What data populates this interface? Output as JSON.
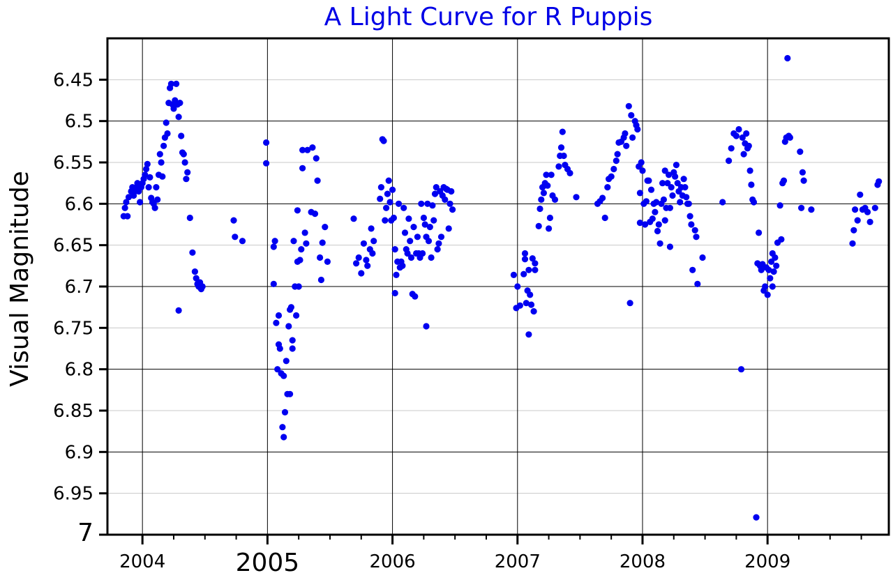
{
  "chart_data": {
    "type": "scatter",
    "title": "A Light Curve for R Puppis",
    "xlabel": "",
    "ylabel": "Visual Magnitude",
    "xlim": [
      2003.72,
      2009.97
    ],
    "ylim": [
      7.0,
      6.4
    ],
    "y_inverted": true,
    "grid": true,
    "color": "#0000f0",
    "x_ticks": [
      {
        "value": 2004,
        "label": "2004"
      },
      {
        "value": 2005,
        "label": "2005"
      },
      {
        "value": 2006,
        "label": "2006"
      },
      {
        "value": 2007,
        "label": "2007"
      },
      {
        "value": 2008,
        "label": "2008"
      },
      {
        "value": 2009,
        "label": "2009"
      }
    ],
    "y_ticks": [
      {
        "value": 6.45,
        "label": "6.45"
      },
      {
        "value": 6.5,
        "label": "6.5"
      },
      {
        "value": 6.55,
        "label": "6.55"
      },
      {
        "value": 6.6,
        "label": "6.6"
      },
      {
        "value": 6.65,
        "label": "6.65"
      },
      {
        "value": 6.7,
        "label": "6.7"
      },
      {
        "value": 6.75,
        "label": "6.75"
      },
      {
        "value": 6.8,
        "label": "6.8"
      },
      {
        "value": 6.85,
        "label": "6.85"
      },
      {
        "value": 6.9,
        "label": "6.9"
      },
      {
        "value": 6.95,
        "label": "6.95"
      },
      {
        "value": 7.0,
        "label": "7"
      }
    ],
    "points": [
      [
        2003.85,
        6.615
      ],
      [
        2003.86,
        6.605
      ],
      [
        2003.87,
        6.598
      ],
      [
        2003.88,
        6.615
      ],
      [
        2003.89,
        6.592
      ],
      [
        2003.91,
        6.585
      ],
      [
        2003.92,
        6.58
      ],
      [
        2003.93,
        6.59
      ],
      [
        2003.94,
        6.585
      ],
      [
        2003.95,
        6.58
      ],
      [
        2003.96,
        6.575
      ],
      [
        2003.97,
        6.585
      ],
      [
        2003.98,
        6.598
      ],
      [
        2003.99,
        6.58
      ],
      [
        2004.0,
        6.575
      ],
      [
        2004.01,
        6.57
      ],
      [
        2004.02,
        6.565
      ],
      [
        2004.03,
        6.558
      ],
      [
        2004.04,
        6.552
      ],
      [
        2004.05,
        6.58
      ],
      [
        2004.06,
        6.568
      ],
      [
        2004.07,
        6.593
      ],
      [
        2004.08,
        6.598
      ],
      [
        2004.09,
        6.6
      ],
      [
        2004.1,
        6.605
      ],
      [
        2004.11,
        6.58
      ],
      [
        2004.12,
        6.595
      ],
      [
        2004.13,
        6.565
      ],
      [
        2004.14,
        6.54
      ],
      [
        2004.15,
        6.55
      ],
      [
        2004.16,
        6.567
      ],
      [
        2004.17,
        6.53
      ],
      [
        2004.18,
        6.52
      ],
      [
        2004.19,
        6.502
      ],
      [
        2004.2,
        6.515
      ],
      [
        2004.21,
        6.478
      ],
      [
        2004.22,
        6.46
      ],
      [
        2004.23,
        6.455
      ],
      [
        2004.24,
        6.48
      ],
      [
        2004.25,
        6.485
      ],
      [
        2004.26,
        6.475
      ],
      [
        2004.27,
        6.455
      ],
      [
        2004.28,
        6.48
      ],
      [
        2004.29,
        6.495
      ],
      [
        2004.3,
        6.478
      ],
      [
        2004.31,
        6.518
      ],
      [
        2004.32,
        6.538
      ],
      [
        2004.33,
        6.54
      ],
      [
        2004.34,
        6.55
      ],
      [
        2004.35,
        6.57
      ],
      [
        2004.36,
        6.562
      ],
      [
        2004.38,
        6.617
      ],
      [
        2004.29,
        6.729
      ],
      [
        2004.4,
        6.659
      ],
      [
        2004.42,
        6.682
      ],
      [
        2004.43,
        6.69
      ],
      [
        2004.44,
        6.697
      ],
      [
        2004.45,
        6.7
      ],
      [
        2004.46,
        6.695
      ],
      [
        2004.47,
        6.703
      ],
      [
        2004.48,
        6.7
      ],
      [
        2004.73,
        6.62
      ],
      [
        2004.74,
        6.64
      ],
      [
        2004.8,
        6.645
      ],
      [
        2004.99,
        6.526
      ],
      [
        2004.99,
        6.551
      ],
      [
        2005.05,
        6.652
      ],
      [
        2005.06,
        6.645
      ],
      [
        2005.05,
        6.697
      ],
      [
        2005.07,
        6.744
      ],
      [
        2005.08,
        6.8
      ],
      [
        2005.09,
        6.77
      ],
      [
        2005.09,
        6.735
      ],
      [
        2005.1,
        6.775
      ],
      [
        2005.11,
        6.805
      ],
      [
        2005.12,
        6.87
      ],
      [
        2005.13,
        6.882
      ],
      [
        2005.13,
        6.808
      ],
      [
        2005.14,
        6.852
      ],
      [
        2005.15,
        6.79
      ],
      [
        2005.16,
        6.83
      ],
      [
        2005.17,
        6.748
      ],
      [
        2005.18,
        6.83
      ],
      [
        2005.18,
        6.728
      ],
      [
        2005.19,
        6.725
      ],
      [
        2005.2,
        6.765
      ],
      [
        2005.2,
        6.775
      ],
      [
        2005.21,
        6.645
      ],
      [
        2005.22,
        6.7
      ],
      [
        2005.23,
        6.735
      ],
      [
        2005.24,
        6.67
      ],
      [
        2005.24,
        6.608
      ],
      [
        2005.25,
        6.7
      ],
      [
        2005.26,
        6.668
      ],
      [
        2005.27,
        6.655
      ],
      [
        2005.28,
        6.535
      ],
      [
        2005.28,
        6.557
      ],
      [
        2005.3,
        6.635
      ],
      [
        2005.31,
        6.648
      ],
      [
        2005.32,
        6.535
      ],
      [
        2005.35,
        6.61
      ],
      [
        2005.36,
        6.532
      ],
      [
        2005.38,
        6.612
      ],
      [
        2005.39,
        6.545
      ],
      [
        2005.4,
        6.572
      ],
      [
        2005.42,
        6.665
      ],
      [
        2005.43,
        6.692
      ],
      [
        2005.44,
        6.647
      ],
      [
        2005.46,
        6.628
      ],
      [
        2005.48,
        6.67
      ],
      [
        2005.69,
        6.618
      ],
      [
        2005.71,
        6.672
      ],
      [
        2005.73,
        6.665
      ],
      [
        2005.75,
        6.684
      ],
      [
        2005.77,
        6.648
      ],
      [
        2005.79,
        6.668
      ],
      [
        2005.8,
        6.675
      ],
      [
        2005.82,
        6.655
      ],
      [
        2005.83,
        6.63
      ],
      [
        2005.84,
        6.66
      ],
      [
        2005.85,
        6.645
      ],
      [
        2005.9,
        6.594
      ],
      [
        2005.91,
        6.58
      ],
      [
        2005.92,
        6.522
      ],
      [
        2005.93,
        6.524
      ],
      [
        2005.94,
        6.62
      ],
      [
        2005.95,
        6.605
      ],
      [
        2005.96,
        6.588
      ],
      [
        2005.97,
        6.572
      ],
      [
        2005.98,
        6.598
      ],
      [
        2005.99,
        6.62
      ],
      [
        2006.0,
        6.583
      ],
      [
        2006.01,
        6.617
      ],
      [
        2006.02,
        6.655
      ],
      [
        2006.02,
        6.708
      ],
      [
        2006.03,
        6.686
      ],
      [
        2006.04,
        6.67
      ],
      [
        2006.05,
        6.6
      ],
      [
        2006.06,
        6.677
      ],
      [
        2006.07,
        6.67
      ],
      [
        2006.08,
        6.675
      ],
      [
        2006.09,
        6.605
      ],
      [
        2006.1,
        6.635
      ],
      [
        2006.11,
        6.655
      ],
      [
        2006.12,
        6.66
      ],
      [
        2006.13,
        6.618
      ],
      [
        2006.14,
        6.645
      ],
      [
        2006.15,
        6.665
      ],
      [
        2006.16,
        6.709
      ],
      [
        2006.17,
        6.628
      ],
      [
        2006.18,
        6.712
      ],
      [
        2006.19,
        6.66
      ],
      [
        2006.2,
        6.64
      ],
      [
        2006.21,
        6.66
      ],
      [
        2006.22,
        6.665
      ],
      [
        2006.23,
        6.6
      ],
      [
        2006.24,
        6.66
      ],
      [
        2006.25,
        6.617
      ],
      [
        2006.26,
        6.625
      ],
      [
        2006.27,
        6.64
      ],
      [
        2006.27,
        6.748
      ],
      [
        2006.28,
        6.6
      ],
      [
        2006.29,
        6.645
      ],
      [
        2006.3,
        6.628
      ],
      [
        2006.31,
        6.665
      ],
      [
        2006.32,
        6.602
      ],
      [
        2006.33,
        6.62
      ],
      [
        2006.34,
        6.588
      ],
      [
        2006.35,
        6.58
      ],
      [
        2006.36,
        6.655
      ],
      [
        2006.37,
        6.648
      ],
      [
        2006.38,
        6.585
      ],
      [
        2006.39,
        6.64
      ],
      [
        2006.4,
        6.59
      ],
      [
        2006.41,
        6.58
      ],
      [
        2006.42,
        6.595
      ],
      [
        2006.43,
        6.582
      ],
      [
        2006.44,
        6.583
      ],
      [
        2006.45,
        6.63
      ],
      [
        2006.46,
        6.6
      ],
      [
        2006.47,
        6.585
      ],
      [
        2006.48,
        6.607
      ],
      [
        2006.97,
        6.686
      ],
      [
        2006.99,
        6.726
      ],
      [
        2007.0,
        6.7
      ],
      [
        2007.02,
        6.723
      ],
      [
        2007.05,
        6.685
      ],
      [
        2007.06,
        6.667
      ],
      [
        2007.06,
        6.66
      ],
      [
        2007.07,
        6.72
      ],
      [
        2007.08,
        6.705
      ],
      [
        2007.09,
        6.758
      ],
      [
        2007.09,
        6.68
      ],
      [
        2007.1,
        6.71
      ],
      [
        2007.11,
        6.722
      ],
      [
        2007.12,
        6.666
      ],
      [
        2007.13,
        6.73
      ],
      [
        2007.14,
        6.68
      ],
      [
        2007.14,
        6.672
      ],
      [
        2007.17,
        6.627
      ],
      [
        2007.18,
        6.606
      ],
      [
        2007.19,
        6.595
      ],
      [
        2007.2,
        6.58
      ],
      [
        2007.21,
        6.587
      ],
      [
        2007.22,
        6.575
      ],
      [
        2007.23,
        6.565
      ],
      [
        2007.24,
        6.578
      ],
      [
        2007.25,
        6.63
      ],
      [
        2007.26,
        6.617
      ],
      [
        2007.27,
        6.565
      ],
      [
        2007.28,
        6.59
      ],
      [
        2007.3,
        6.595
      ],
      [
        2007.33,
        6.555
      ],
      [
        2007.34,
        6.542
      ],
      [
        2007.35,
        6.532
      ],
      [
        2007.36,
        6.513
      ],
      [
        2007.37,
        6.542
      ],
      [
        2007.38,
        6.553
      ],
      [
        2007.4,
        6.558
      ],
      [
        2007.42,
        6.563
      ],
      [
        2007.47,
        6.592
      ],
      [
        2007.64,
        6.6
      ],
      [
        2007.66,
        6.597
      ],
      [
        2007.68,
        6.593
      ],
      [
        2007.7,
        6.617
      ],
      [
        2007.72,
        6.58
      ],
      [
        2007.73,
        6.57
      ],
      [
        2007.75,
        6.567
      ],
      [
        2007.77,
        6.558
      ],
      [
        2007.79,
        6.548
      ],
      [
        2007.8,
        6.54
      ],
      [
        2007.81,
        6.526
      ],
      [
        2007.83,
        6.525
      ],
      [
        2007.85,
        6.52
      ],
      [
        2007.86,
        6.515
      ],
      [
        2007.87,
        6.53
      ],
      [
        2007.89,
        6.482
      ],
      [
        2007.9,
        6.72
      ],
      [
        2007.91,
        6.493
      ],
      [
        2007.92,
        6.52
      ],
      [
        2007.94,
        6.5
      ],
      [
        2007.95,
        6.505
      ],
      [
        2007.96,
        6.51
      ],
      [
        2007.97,
        6.555
      ],
      [
        2007.98,
        6.623
      ],
      [
        2007.98,
        6.587
      ],
      [
        2007.99,
        6.55
      ],
      [
        2008.0,
        6.56
      ],
      [
        2008.01,
        6.6
      ],
      [
        2008.02,
        6.625
      ],
      [
        2008.03,
        6.597
      ],
      [
        2008.04,
        6.572
      ],
      [
        2008.05,
        6.572
      ],
      [
        2008.06,
        6.622
      ],
      [
        2008.07,
        6.583
      ],
      [
        2008.08,
        6.618
      ],
      [
        2008.09,
        6.6
      ],
      [
        2008.1,
        6.61
      ],
      [
        2008.11,
        6.598
      ],
      [
        2008.12,
        6.633
      ],
      [
        2008.13,
        6.625
      ],
      [
        2008.14,
        6.648
      ],
      [
        2008.15,
        6.6
      ],
      [
        2008.16,
        6.575
      ],
      [
        2008.17,
        6.595
      ],
      [
        2008.18,
        6.62
      ],
      [
        2008.18,
        6.56
      ],
      [
        2008.19,
        6.605
      ],
      [
        2008.2,
        6.575
      ],
      [
        2008.21,
        6.565
      ],
      [
        2008.22,
        6.652
      ],
      [
        2008.22,
        6.605
      ],
      [
        2008.23,
        6.58
      ],
      [
        2008.24,
        6.59
      ],
      [
        2008.25,
        6.562
      ],
      [
        2008.26,
        6.567
      ],
      [
        2008.27,
        6.553
      ],
      [
        2008.28,
        6.575
      ],
      [
        2008.29,
        6.585
      ],
      [
        2008.3,
        6.598
      ],
      [
        2008.31,
        6.58
      ],
      [
        2008.32,
        6.59
      ],
      [
        2008.33,
        6.57
      ],
      [
        2008.34,
        6.58
      ],
      [
        2008.35,
        6.592
      ],
      [
        2008.36,
        6.6
      ],
      [
        2008.37,
        6.6
      ],
      [
        2008.38,
        6.615
      ],
      [
        2008.39,
        6.625
      ],
      [
        2008.4,
        6.68
      ],
      [
        2008.42,
        6.632
      ],
      [
        2008.43,
        6.64
      ],
      [
        2008.44,
        6.697
      ],
      [
        2008.48,
        6.665
      ],
      [
        2008.64,
        6.598
      ],
      [
        2008.69,
        6.548
      ],
      [
        2008.71,
        6.533
      ],
      [
        2008.73,
        6.515
      ],
      [
        2008.75,
        6.518
      ],
      [
        2008.77,
        6.51
      ],
      [
        2008.79,
        6.8
      ],
      [
        2008.8,
        6.52
      ],
      [
        2008.81,
        6.54
      ],
      [
        2008.82,
        6.527
      ],
      [
        2008.83,
        6.515
      ],
      [
        2008.84,
        6.533
      ],
      [
        2008.85,
        6.53
      ],
      [
        2008.86,
        6.56
      ],
      [
        2008.87,
        6.577
      ],
      [
        2008.88,
        6.595
      ],
      [
        2008.89,
        6.598
      ],
      [
        2008.91,
        6.979
      ],
      [
        2008.92,
        6.672
      ],
      [
        2008.93,
        6.635
      ],
      [
        2008.94,
        6.675
      ],
      [
        2008.95,
        6.68
      ],
      [
        2008.96,
        6.673
      ],
      [
        2008.97,
        6.705
      ],
      [
        2008.98,
        6.7
      ],
      [
        2008.99,
        6.677
      ],
      [
        2009.0,
        6.71
      ],
      [
        2009.01,
        6.68
      ],
      [
        2009.02,
        6.69
      ],
      [
        2009.03,
        6.67
      ],
      [
        2009.04,
        6.66
      ],
      [
        2009.04,
        6.7
      ],
      [
        2009.05,
        6.682
      ],
      [
        2009.06,
        6.665
      ],
      [
        2009.07,
        6.675
      ],
      [
        2009.08,
        6.647
      ],
      [
        2009.1,
        6.602
      ],
      [
        2009.11,
        6.643
      ],
      [
        2009.12,
        6.575
      ],
      [
        2009.13,
        6.572
      ],
      [
        2009.14,
        6.525
      ],
      [
        2009.15,
        6.52
      ],
      [
        2009.16,
        6.424
      ],
      [
        2009.17,
        6.518
      ],
      [
        2009.18,
        6.52
      ],
      [
        2009.26,
        6.537
      ],
      [
        2009.27,
        6.605
      ],
      [
        2009.28,
        6.562
      ],
      [
        2009.29,
        6.572
      ],
      [
        2009.35,
        6.607
      ],
      [
        2009.68,
        6.648
      ],
      [
        2009.69,
        6.632
      ],
      [
        2009.7,
        6.607
      ],
      [
        2009.72,
        6.62
      ],
      [
        2009.74,
        6.589
      ],
      [
        2009.76,
        6.607
      ],
      [
        2009.78,
        6.605
      ],
      [
        2009.8,
        6.61
      ],
      [
        2009.82,
        6.622
      ],
      [
        2009.86,
        6.605
      ],
      [
        2009.88,
        6.577
      ],
      [
        2009.89,
        6.573
      ]
    ]
  }
}
